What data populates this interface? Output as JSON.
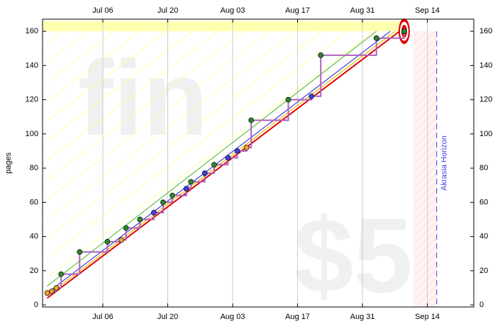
{
  "chart_data": {
    "type": "line",
    "y_label": "pages",
    "watermarks": [
      "fin",
      "$5"
    ],
    "horizon_label": "Akrasia Horizon",
    "xlim": [
      "Jun 23",
      "Sep 24"
    ],
    "xticks": [
      "Jul 06",
      "Jul 20",
      "Aug 03",
      "Aug 17",
      "Aug 31",
      "Sep 14"
    ],
    "ylim": [
      -1.2,
      167.1
    ],
    "yticks": [
      0,
      20,
      40,
      60,
      80,
      100,
      120,
      140,
      160
    ],
    "grid": true,
    "x": [
      "Jun 24",
      "Jun 25",
      "Jun 26",
      "Jun 27",
      "Jul 01",
      "Jul 07",
      "Jul 10",
      "Jul 11",
      "Jul 14",
      "Jul 17",
      "Jul 19",
      "Jul 21",
      "Jul 24",
      "Jul 25",
      "Jul 28",
      "Jul 30",
      "Aug 02",
      "Aug 04",
      "Aug 06",
      "Aug 07",
      "Aug 15",
      "Aug 20",
      "Aug 22",
      "Sep 03",
      "Sep 09"
    ],
    "values": [
      7,
      8,
      10,
      18,
      31,
      37,
      38,
      45,
      50,
      54,
      60,
      64,
      68,
      72,
      77,
      82,
      86,
      90,
      92,
      108,
      120,
      122,
      146,
      156,
      160
    ],
    "point_colors": [
      "#f0a030",
      "#f0a030",
      "#f0a030",
      "#2a8a2a",
      "#2a8a2a",
      "#2a8a2a",
      "#f0a030",
      "#2a8a2a",
      "#2a8a2a",
      "#4040e0",
      "#2a8a2a",
      "#2a8a2a",
      "#4040e0",
      "#2a8a2a",
      "#4040e0",
      "#2a8a2a",
      "#4040e0",
      "#4040e0",
      "#f0a030",
      "#2a8a2a",
      "#2a8a2a",
      "#4040e0",
      "#2a8a2a",
      "#2a8a2a",
      "#2a8a2a"
    ],
    "step_color": "#b060c0",
    "road_lines": [
      {
        "color": "#e00000",
        "x": [
          "Jun 24",
          "Sep 08"
        ],
        "values": [
          4,
          160
        ]
      },
      {
        "color": "#f0c000",
        "x": [
          "Jun 24",
          "Sep 07"
        ],
        "values": [
          5.5,
          160
        ]
      },
      {
        "color": "#4040e0",
        "x": [
          "Jun 24",
          "Sep 06"
        ],
        "values": [
          7,
          160
        ]
      },
      {
        "color": "#60c040",
        "x": [
          "Jun 24",
          "Sep 03"
        ],
        "values": [
          11,
          160
        ]
      }
    ],
    "goal": {
      "x": "Sep 09",
      "value": 160
    },
    "horizon": {
      "start": "Sep 11",
      "x": "Sep 16"
    }
  }
}
